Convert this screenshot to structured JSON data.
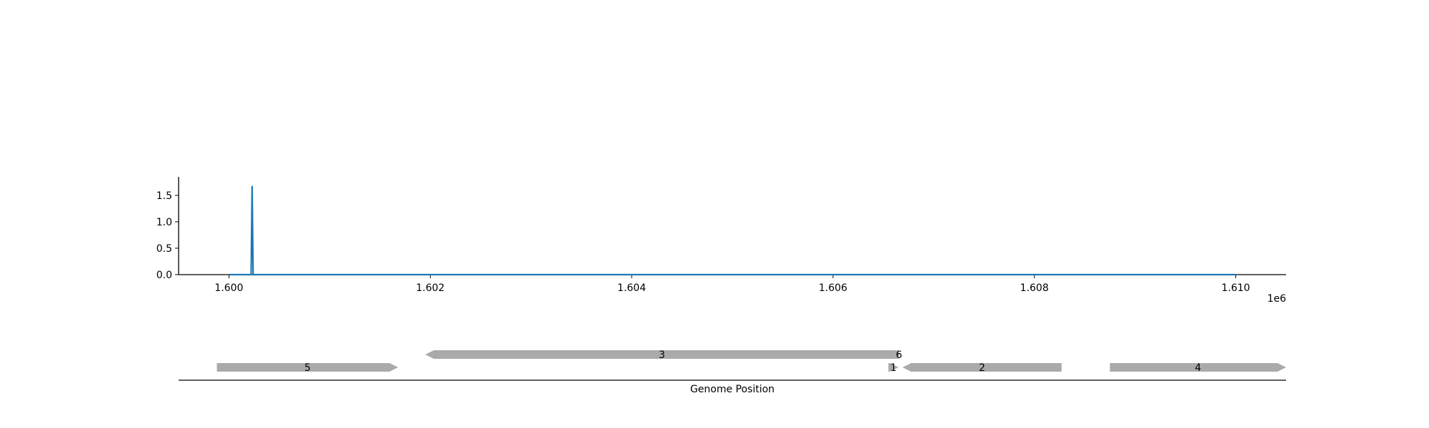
{
  "chart_data": [
    {
      "type": "line",
      "title": "",
      "xlabel": "",
      "ylabel": "",
      "x_offset_label": "1e6",
      "xlim": [
        1599500,
        1610500
      ],
      "ylim": [
        0,
        1.85
      ],
      "x_ticks": [
        1600000,
        1602000,
        1604000,
        1606000,
        1608000,
        1610000
      ],
      "x_tick_labels": [
        "1.600",
        "1.602",
        "1.604",
        "1.606",
        "1.608",
        "1.610"
      ],
      "y_ticks": [
        0,
        0.5,
        1.0,
        1.5
      ],
      "y_tick_labels": [
        "0.0",
        "0.5",
        "1.0",
        "1.5"
      ],
      "grid": false,
      "color": "#1f77b4",
      "series": [
        {
          "x": [
            1600000,
            1600200,
            1600220,
            1600230,
            1600240,
            1600260,
            1610000
          ],
          "y": [
            0,
            0,
            0,
            1.68,
            0,
            0,
            0
          ]
        }
      ]
    },
    {
      "type": "gene-map",
      "xlabel": "Genome Position",
      "xlim": [
        1599500,
        1610500
      ],
      "color": "#aaaaaa",
      "features": [
        {
          "label": "5",
          "start": 1599880,
          "end": 1601680,
          "strand": "+",
          "row": 0
        },
        {
          "label": "3",
          "start": 1601950,
          "end": 1606650,
          "strand": "-",
          "row": 1
        },
        {
          "label": "6",
          "start": 1606650,
          "end": 1606660,
          "strand": "+",
          "row": 1
        },
        {
          "label": "1",
          "start": 1606550,
          "end": 1606650,
          "strand": "+",
          "row": 0
        },
        {
          "label": "2",
          "start": 1606690,
          "end": 1608270,
          "strand": "-",
          "row": 0
        },
        {
          "label": "4",
          "start": 1608750,
          "end": 1610500,
          "strand": "+",
          "row": 0
        }
      ]
    }
  ]
}
